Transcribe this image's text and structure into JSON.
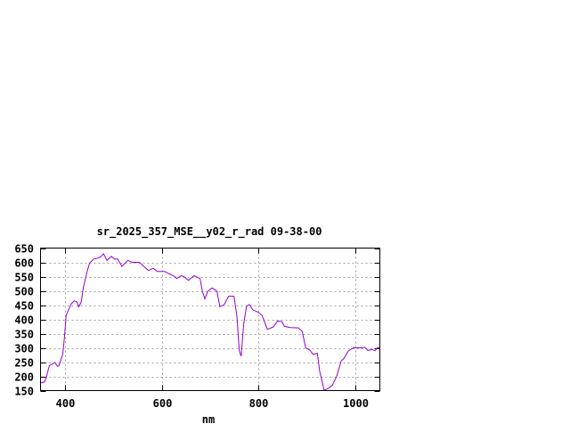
{
  "chart_data": {
    "type": "line",
    "title": "sr_2025_357_MSE__y02_r_rad 09-38-00",
    "xlabel": "nm",
    "ylabel": "",
    "xlim": [
      350,
      1050
    ],
    "ylim": [
      150,
      650
    ],
    "xticks": [
      400,
      600,
      800,
      1000
    ],
    "yticks": [
      150,
      200,
      250,
      300,
      350,
      400,
      450,
      500,
      550,
      600,
      650
    ],
    "grid": true,
    "line_color": "#9400d3",
    "series": [
      {
        "x": [
          351,
          358,
          362,
          368,
          374,
          380,
          385,
          388,
          393,
          396,
          399,
          403,
          408,
          414,
          420,
          425,
          429,
          434,
          438,
          445,
          451,
          460,
          469,
          475,
          480,
          487,
          496,
          502,
          509,
          518,
          530,
          539,
          548,
          554,
          563,
          573,
          582,
          591,
          606,
          615,
          627,
          631,
          640,
          646,
          655,
          667,
          679,
          684,
          689,
          695,
          704,
          714,
          720,
          729,
          738,
          749,
          755,
          760,
          764,
          769,
          775,
          781,
          788,
          799,
          807,
          818,
          830,
          839,
          848,
          853,
          866,
          882,
          890,
          897,
          906,
          912,
          921,
          926,
          935,
          943,
          952,
          961,
          970,
          976,
          985,
          995,
          1013,
          1019,
          1025,
          1034,
          1040,
          1046,
          1049
        ],
        "y": [
          177,
          180,
          196,
          237,
          243,
          248,
          235,
          237,
          263,
          279,
          331,
          414,
          435,
          456,
          465,
          461,
          444,
          461,
          508,
          560,
          597,
          612,
          615,
          621,
          630,
          607,
          621,
          612,
          612,
          586,
          607,
          600,
          600,
          600,
          586,
          571,
          579,
          568,
          568,
          560,
          550,
          543,
          553,
          550,
          537,
          553,
          543,
          498,
          472,
          498,
          510,
          498,
          444,
          452,
          481,
          481,
          414,
          289,
          271,
          383,
          446,
          452,
          433,
          425,
          414,
          365,
          373,
          394,
          392,
          375,
          371,
          370,
          357,
          300,
          292,
          277,
          281,
          217,
          152,
          157,
          168,
          201,
          253,
          263,
          289,
          300,
          300,
          302,
          291,
          294,
          290,
          302,
          300
        ]
      }
    ]
  }
}
